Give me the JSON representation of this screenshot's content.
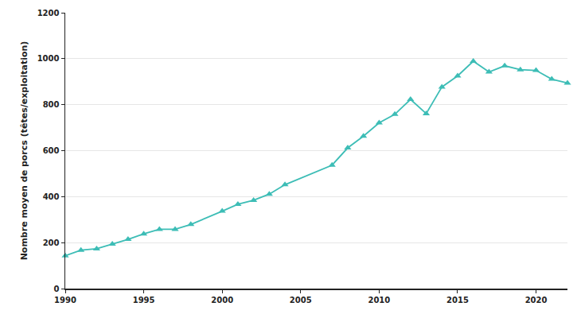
{
  "chart_data": {
    "type": "line",
    "y_label": "Nombre moyen de porcs (têtes/exploitation)",
    "x": [
      1990,
      1991,
      1992,
      1993,
      1994,
      1995,
      1996,
      1997,
      1998,
      2000,
      2001,
      2002,
      2003,
      2004,
      2007,
      2008,
      2009,
      2010,
      2011,
      2012,
      2013,
      2014,
      2015,
      2016,
      2017,
      2018,
      2019,
      2020,
      2021,
      2022
    ],
    "values": [
      143,
      167,
      173,
      194,
      214,
      238,
      258,
      258,
      279,
      337,
      367,
      384,
      411,
      452,
      537,
      612,
      663,
      721,
      758,
      823,
      761,
      877,
      925,
      989,
      942,
      969,
      952,
      949,
      911,
      894
    ],
    "color": "#3dbdb6",
    "marker": "triangle-up",
    "xlim": [
      1990,
      2022
    ],
    "xticks": [
      1990,
      1995,
      2000,
      2005,
      2010,
      2015,
      2020
    ],
    "ylim": [
      0,
      1200
    ],
    "yticks": [
      0,
      200,
      400,
      600,
      800,
      1000,
      1200
    ],
    "grid": true
  }
}
